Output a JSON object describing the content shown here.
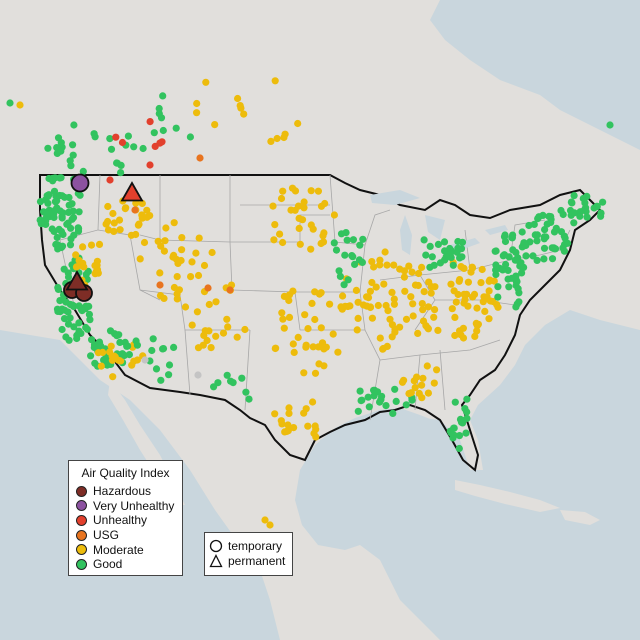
{
  "legend": {
    "title": "Air Quality Index",
    "items": [
      {
        "label": "Hazardous",
        "color": "#7e2d26"
      },
      {
        "label": "Very Unhealthy",
        "color": "#8c52a0"
      },
      {
        "label": "Unhealthy",
        "color": "#e2402d"
      },
      {
        "label": "USG",
        "color": "#e8741f"
      },
      {
        "label": "Moderate",
        "color": "#edbc0c"
      },
      {
        "label": "Good",
        "color": "#32c35f"
      }
    ]
  },
  "type_legend": {
    "temporary": "temporary",
    "permanent": "permanent"
  },
  "colors": {
    "water": "#c9d6dd",
    "land": "#e1dfdc",
    "unknown": "#c4c4c4"
  },
  "icons": {
    "temporary": "circle-icon",
    "permanent": "triangle-icon"
  }
}
